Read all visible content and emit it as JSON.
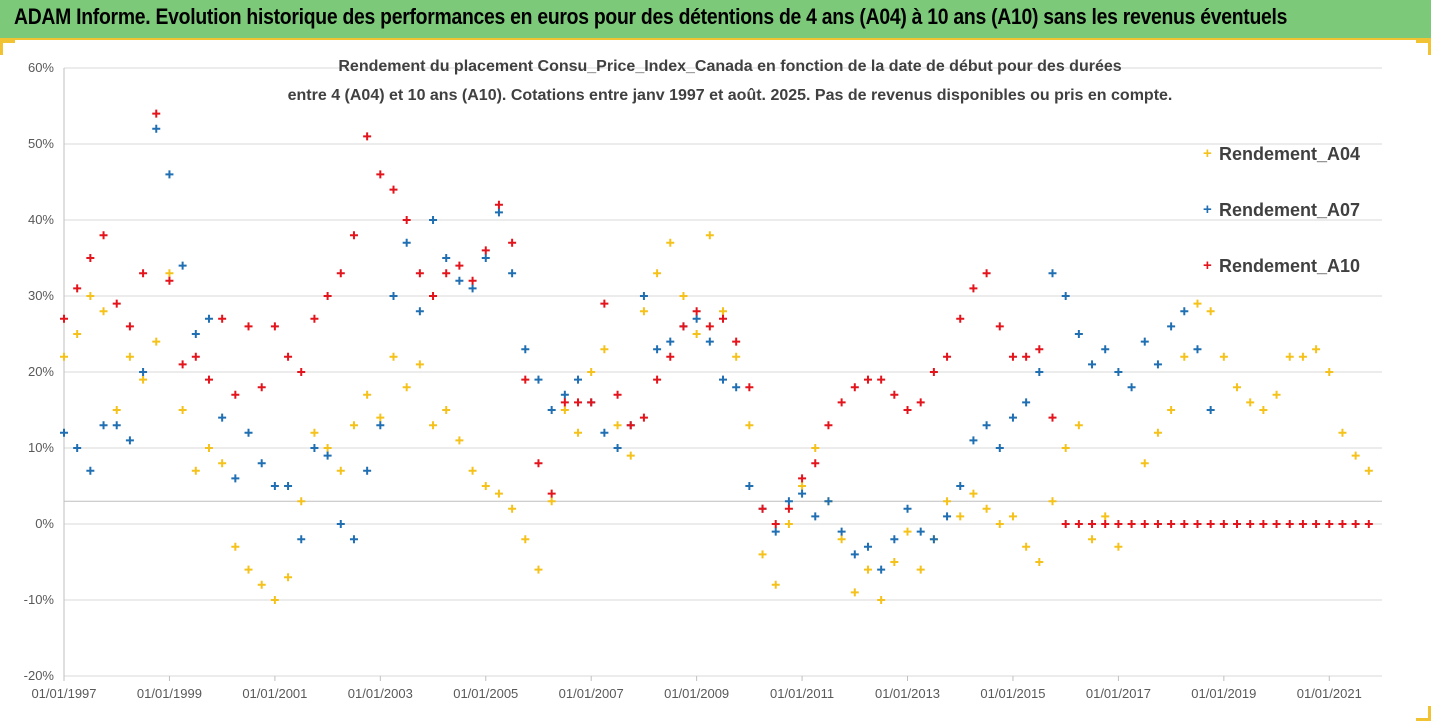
{
  "banner": {
    "title": "ADAM Informe. Evolution historique des performances en euros pour des détentions de 4 ans (A04) à 10 ans (A10) sans les revenus éventuels"
  },
  "colors": {
    "banner_bg": "#7dc97a",
    "frame": "#f1c232",
    "A04": "#f5c21b",
    "A07": "#1f6fb2",
    "A10": "#e3141b",
    "grid": "#d9d9d9"
  },
  "chart_data": {
    "type": "scatter",
    "title_line1": "Rendement du placement Consu_Price_Index_Canada en fonction de la date de début pour des durées",
    "title_line2": "entre 4 (A04) et 10 ans (A10). Cotations entre janv 1997 et août. 2025. Pas de revenus disponibles ou pris en compte.",
    "xlabel": "",
    "ylabel": "",
    "x_range": [
      "01/01/1997",
      "01/01/2022"
    ],
    "ylim": [
      -20,
      60
    ],
    "y_ticks": [
      "60%",
      "50%",
      "40%",
      "30%",
      "20%",
      "10%",
      "0%",
      "-10%",
      "-20%"
    ],
    "x_ticks": [
      "01/01/1997",
      "01/01/1999",
      "01/01/2001",
      "01/01/2003",
      "01/01/2005",
      "01/01/2007",
      "01/01/2009",
      "01/01/2011",
      "01/01/2013",
      "01/01/2015",
      "01/01/2017",
      "01/01/2019",
      "01/01/2021"
    ],
    "grid": "horizontal",
    "marker": "+",
    "legend_position": "right",
    "series": [
      {
        "name": "Rendement_A04",
        "key": "A04",
        "points": [
          [
            "1997-01",
            22
          ],
          [
            "1997-04",
            25
          ],
          [
            "1997-07",
            30
          ],
          [
            "1997-10",
            28
          ],
          [
            "1998-01",
            15
          ],
          [
            "1998-04",
            22
          ],
          [
            "1998-07",
            19
          ],
          [
            "1998-10",
            24
          ],
          [
            "1999-01",
            33
          ],
          [
            "1999-04",
            15
          ],
          [
            "1999-07",
            7
          ],
          [
            "1999-10",
            10
          ],
          [
            "2000-01",
            8
          ],
          [
            "2000-04",
            -3
          ],
          [
            "2000-07",
            -6
          ],
          [
            "2000-10",
            -8
          ],
          [
            "2001-01",
            -10
          ],
          [
            "2001-04",
            -7
          ],
          [
            "2001-07",
            3
          ],
          [
            "2001-10",
            12
          ],
          [
            "2002-01",
            10
          ],
          [
            "2002-04",
            7
          ],
          [
            "2002-07",
            13
          ],
          [
            "2002-10",
            17
          ],
          [
            "2003-01",
            14
          ],
          [
            "2003-04",
            22
          ],
          [
            "2003-07",
            18
          ],
          [
            "2003-10",
            21
          ],
          [
            "2004-01",
            13
          ],
          [
            "2004-04",
            15
          ],
          [
            "2004-07",
            11
          ],
          [
            "2004-10",
            7
          ],
          [
            "2005-01",
            5
          ],
          [
            "2005-04",
            4
          ],
          [
            "2005-07",
            2
          ],
          [
            "2005-10",
            -2
          ],
          [
            "2006-01",
            -6
          ],
          [
            "2006-04",
            3
          ],
          [
            "2006-07",
            15
          ],
          [
            "2006-10",
            12
          ],
          [
            "2007-01",
            20
          ],
          [
            "2007-04",
            23
          ],
          [
            "2007-07",
            13
          ],
          [
            "2007-10",
            9
          ],
          [
            "2008-01",
            28
          ],
          [
            "2008-04",
            33
          ],
          [
            "2008-07",
            37
          ],
          [
            "2008-10",
            30
          ],
          [
            "2009-01",
            25
          ],
          [
            "2009-04",
            38
          ],
          [
            "2009-07",
            28
          ],
          [
            "2009-10",
            22
          ],
          [
            "2010-01",
            13
          ],
          [
            "2010-04",
            -4
          ],
          [
            "2010-07",
            -8
          ],
          [
            "2010-10",
            0
          ],
          [
            "2011-01",
            5
          ],
          [
            "2011-04",
            10
          ],
          [
            "2011-07",
            3
          ],
          [
            "2011-10",
            -2
          ],
          [
            "2012-01",
            -9
          ],
          [
            "2012-04",
            -6
          ],
          [
            "2012-07",
            -10
          ],
          [
            "2012-10",
            -5
          ],
          [
            "2013-01",
            -1
          ],
          [
            "2013-04",
            -6
          ],
          [
            "2013-07",
            -2
          ],
          [
            "2013-10",
            3
          ],
          [
            "2014-01",
            1
          ],
          [
            "2014-04",
            4
          ],
          [
            "2014-07",
            2
          ],
          [
            "2014-10",
            0
          ],
          [
            "2015-01",
            1
          ],
          [
            "2015-04",
            -3
          ],
          [
            "2015-07",
            -5
          ],
          [
            "2015-10",
            3
          ],
          [
            "2016-01",
            10
          ],
          [
            "2016-04",
            13
          ],
          [
            "2016-07",
            -2
          ],
          [
            "2016-10",
            1
          ],
          [
            "2017-01",
            -3
          ],
          [
            "2017-04",
            0
          ],
          [
            "2017-07",
            8
          ],
          [
            "2017-10",
            12
          ],
          [
            "2018-01",
            15
          ],
          [
            "2018-04",
            22
          ],
          [
            "2018-07",
            29
          ],
          [
            "2018-10",
            28
          ],
          [
            "2019-01",
            22
          ],
          [
            "2019-04",
            18
          ],
          [
            "2019-07",
            16
          ],
          [
            "2019-10",
            15
          ],
          [
            "2020-01",
            17
          ],
          [
            "2020-04",
            22
          ],
          [
            "2020-07",
            22
          ],
          [
            "2020-10",
            23
          ],
          [
            "2021-01",
            20
          ],
          [
            "2021-04",
            12
          ],
          [
            "2021-07",
            9
          ],
          [
            "2021-10",
            7
          ]
        ]
      },
      {
        "name": "Rendement_A07",
        "key": "A07",
        "points": [
          [
            "1997-01",
            12
          ],
          [
            "1997-04",
            10
          ],
          [
            "1997-07",
            7
          ],
          [
            "1997-10",
            13
          ],
          [
            "1998-01",
            13
          ],
          [
            "1998-04",
            11
          ],
          [
            "1998-07",
            20
          ],
          [
            "1998-10",
            52
          ],
          [
            "1999-01",
            46
          ],
          [
            "1999-04",
            34
          ],
          [
            "1999-07",
            25
          ],
          [
            "1999-10",
            27
          ],
          [
            "2000-01",
            14
          ],
          [
            "2000-04",
            6
          ],
          [
            "2000-07",
            12
          ],
          [
            "2000-10",
            8
          ],
          [
            "2001-01",
            5
          ],
          [
            "2001-04",
            5
          ],
          [
            "2001-07",
            -2
          ],
          [
            "2001-10",
            10
          ],
          [
            "2002-01",
            9
          ],
          [
            "2002-04",
            0
          ],
          [
            "2002-07",
            -2
          ],
          [
            "2002-10",
            7
          ],
          [
            "2003-01",
            13
          ],
          [
            "2003-04",
            30
          ],
          [
            "2003-07",
            37
          ],
          [
            "2003-10",
            28
          ],
          [
            "2004-01",
            40
          ],
          [
            "2004-04",
            35
          ],
          [
            "2004-07",
            32
          ],
          [
            "2004-10",
            31
          ],
          [
            "2005-01",
            35
          ],
          [
            "2005-04",
            41
          ],
          [
            "2005-07",
            33
          ],
          [
            "2005-10",
            23
          ],
          [
            "2006-01",
            19
          ],
          [
            "2006-04",
            15
          ],
          [
            "2006-07",
            17
          ],
          [
            "2006-10",
            19
          ],
          [
            "2007-01",
            16
          ],
          [
            "2007-04",
            12
          ],
          [
            "2007-07",
            10
          ],
          [
            "2007-10",
            13
          ],
          [
            "2008-01",
            30
          ],
          [
            "2008-04",
            23
          ],
          [
            "2008-07",
            24
          ],
          [
            "2008-10",
            26
          ],
          [
            "2009-01",
            27
          ],
          [
            "2009-04",
            24
          ],
          [
            "2009-07",
            19
          ],
          [
            "2009-10",
            18
          ],
          [
            "2010-01",
            5
          ],
          [
            "2010-04",
            2
          ],
          [
            "2010-07",
            -1
          ],
          [
            "2010-10",
            3
          ],
          [
            "2011-01",
            4
          ],
          [
            "2011-04",
            1
          ],
          [
            "2011-07",
            3
          ],
          [
            "2011-10",
            -1
          ],
          [
            "2012-01",
            -4
          ],
          [
            "2012-04",
            -3
          ],
          [
            "2012-07",
            -6
          ],
          [
            "2012-10",
            -2
          ],
          [
            "2013-01",
            2
          ],
          [
            "2013-04",
            -1
          ],
          [
            "2013-07",
            -2
          ],
          [
            "2013-10",
            1
          ],
          [
            "2014-01",
            5
          ],
          [
            "2014-04",
            11
          ],
          [
            "2014-07",
            13
          ],
          [
            "2014-10",
            10
          ],
          [
            "2015-01",
            14
          ],
          [
            "2015-04",
            16
          ],
          [
            "2015-07",
            20
          ],
          [
            "2015-10",
            33
          ],
          [
            "2016-01",
            30
          ],
          [
            "2016-04",
            25
          ],
          [
            "2016-07",
            21
          ],
          [
            "2016-10",
            23
          ],
          [
            "2017-01",
            20
          ],
          [
            "2017-04",
            18
          ],
          [
            "2017-07",
            24
          ],
          [
            "2017-10",
            21
          ],
          [
            "2018-01",
            26
          ],
          [
            "2018-04",
            28
          ],
          [
            "2018-07",
            23
          ],
          [
            "2018-10",
            15
          ]
        ]
      },
      {
        "name": "Rendement_A10",
        "key": "A10",
        "points": [
          [
            "1997-01",
            27
          ],
          [
            "1997-04",
            31
          ],
          [
            "1997-07",
            35
          ],
          [
            "1997-10",
            38
          ],
          [
            "1998-01",
            29
          ],
          [
            "1998-04",
            26
          ],
          [
            "1998-07",
            33
          ],
          [
            "1998-10",
            54
          ],
          [
            "1999-01",
            32
          ],
          [
            "1999-04",
            21
          ],
          [
            "1999-07",
            22
          ],
          [
            "1999-10",
            19
          ],
          [
            "2000-01",
            27
          ],
          [
            "2000-04",
            17
          ],
          [
            "2000-07",
            26
          ],
          [
            "2000-10",
            18
          ],
          [
            "2001-01",
            26
          ],
          [
            "2001-04",
            22
          ],
          [
            "2001-07",
            20
          ],
          [
            "2001-10",
            27
          ],
          [
            "2002-01",
            30
          ],
          [
            "2002-04",
            33
          ],
          [
            "2002-07",
            38
          ],
          [
            "2002-10",
            51
          ],
          [
            "2003-01",
            46
          ],
          [
            "2003-04",
            44
          ],
          [
            "2003-07",
            40
          ],
          [
            "2003-10",
            33
          ],
          [
            "2004-01",
            30
          ],
          [
            "2004-04",
            33
          ],
          [
            "2004-07",
            34
          ],
          [
            "2004-10",
            32
          ],
          [
            "2005-01",
            36
          ],
          [
            "2005-04",
            42
          ],
          [
            "2005-07",
            37
          ],
          [
            "2005-10",
            19
          ],
          [
            "2006-01",
            8
          ],
          [
            "2006-04",
            4
          ],
          [
            "2006-07",
            16
          ],
          [
            "2006-10",
            16
          ],
          [
            "2007-01",
            16
          ],
          [
            "2007-04",
            29
          ],
          [
            "2007-07",
            17
          ],
          [
            "2007-10",
            13
          ],
          [
            "2008-01",
            14
          ],
          [
            "2008-04",
            19
          ],
          [
            "2008-07",
            22
          ],
          [
            "2008-10",
            26
          ],
          [
            "2009-01",
            28
          ],
          [
            "2009-04",
            26
          ],
          [
            "2009-07",
            27
          ],
          [
            "2009-10",
            24
          ],
          [
            "2010-01",
            18
          ],
          [
            "2010-04",
            2
          ],
          [
            "2010-07",
            0
          ],
          [
            "2010-10",
            2
          ],
          [
            "2011-01",
            6
          ],
          [
            "2011-04",
            8
          ],
          [
            "2011-07",
            13
          ],
          [
            "2011-10",
            16
          ],
          [
            "2012-01",
            18
          ],
          [
            "2012-04",
            19
          ],
          [
            "2012-07",
            19
          ],
          [
            "2012-10",
            17
          ],
          [
            "2013-01",
            15
          ],
          [
            "2013-04",
            16
          ],
          [
            "2013-07",
            20
          ],
          [
            "2013-10",
            22
          ],
          [
            "2014-01",
            27
          ],
          [
            "2014-04",
            31
          ],
          [
            "2014-07",
            33
          ],
          [
            "2014-10",
            26
          ],
          [
            "2015-01",
            22
          ],
          [
            "2015-04",
            22
          ],
          [
            "2015-07",
            23
          ],
          [
            "2015-10",
            14
          ],
          [
            "2016-01",
            0
          ],
          [
            "2016-04",
            0
          ],
          [
            "2016-07",
            0
          ],
          [
            "2016-10",
            0
          ],
          [
            "2017-01",
            0
          ],
          [
            "2017-04",
            0
          ],
          [
            "2017-07",
            0
          ],
          [
            "2017-10",
            0
          ],
          [
            "2018-01",
            0
          ],
          [
            "2018-04",
            0
          ],
          [
            "2018-07",
            0
          ],
          [
            "2018-10",
            0
          ],
          [
            "2019-01",
            0
          ],
          [
            "2019-04",
            0
          ],
          [
            "2019-07",
            0
          ],
          [
            "2019-10",
            0
          ],
          [
            "2020-01",
            0
          ],
          [
            "2020-04",
            0
          ],
          [
            "2020-07",
            0
          ],
          [
            "2020-10",
            0
          ],
          [
            "2021-01",
            0
          ],
          [
            "2021-04",
            0
          ],
          [
            "2021-07",
            0
          ],
          [
            "2021-10",
            0
          ]
        ]
      }
    ]
  }
}
